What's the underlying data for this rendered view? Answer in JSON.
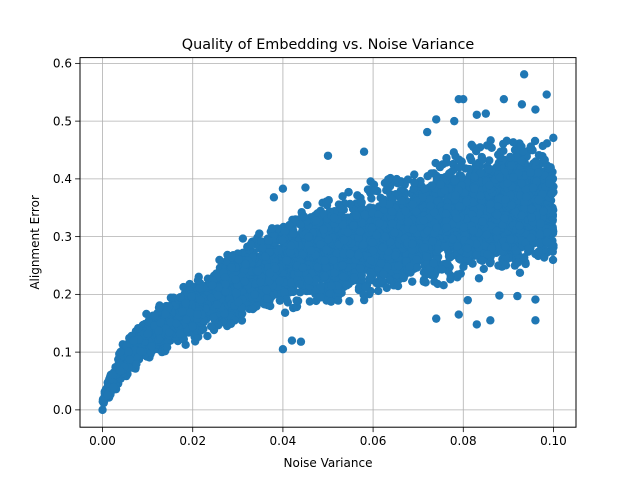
{
  "chart_data": {
    "type": "scatter",
    "title": "Quality of Embedding vs. Noise Variance",
    "xlabel": "Noise Variance",
    "ylabel": "Alignment Error",
    "xlim": [
      -0.005,
      0.105
    ],
    "ylim": [
      -0.03,
      0.61
    ],
    "grid": true,
    "marker_color": "#1f77b4",
    "xticks": [
      0.0,
      0.02,
      0.04,
      0.06,
      0.08,
      0.1
    ],
    "xtick_labels": [
      "0.00",
      "0.02",
      "0.04",
      "0.06",
      "0.08",
      "0.10"
    ],
    "yticks": [
      0.0,
      0.1,
      0.2,
      0.3,
      0.4,
      0.5,
      0.6
    ],
    "ytick_labels": [
      "0.0",
      "0.1",
      "0.2",
      "0.3",
      "0.4",
      "0.5",
      "0.6"
    ],
    "band": {
      "description_points": [
        [
          0.0,
          0.0,
          0.03
        ],
        [
          0.005,
          0.05,
          0.13
        ],
        [
          0.01,
          0.075,
          0.175
        ],
        [
          0.02,
          0.11,
          0.235
        ],
        [
          0.03,
          0.14,
          0.3
        ],
        [
          0.04,
          0.16,
          0.35
        ],
        [
          0.05,
          0.17,
          0.38
        ],
        [
          0.06,
          0.18,
          0.41
        ],
        [
          0.07,
          0.19,
          0.44
        ],
        [
          0.08,
          0.2,
          0.47
        ],
        [
          0.09,
          0.215,
          0.49
        ],
        [
          0.1,
          0.22,
          0.49
        ]
      ]
    },
    "outliers": [
      [
        0.0935,
        0.581
      ],
      [
        0.0985,
        0.546
      ],
      [
        0.079,
        0.538
      ],
      [
        0.08,
        0.538
      ],
      [
        0.089,
        0.538
      ],
      [
        0.093,
        0.529
      ],
      [
        0.096,
        0.52
      ],
      [
        0.085,
        0.513
      ],
      [
        0.083,
        0.511
      ],
      [
        0.078,
        0.5
      ],
      [
        0.074,
        0.503
      ],
      [
        0.072,
        0.481
      ],
      [
        0.05,
        0.44
      ],
      [
        0.058,
        0.447
      ],
      [
        0.04,
        0.383
      ],
      [
        0.045,
        0.385
      ],
      [
        0.038,
        0.368
      ],
      [
        0.096,
        0.155
      ],
      [
        0.083,
        0.148
      ],
      [
        0.086,
        0.155
      ],
      [
        0.074,
        0.158
      ],
      [
        0.079,
        0.165
      ],
      [
        0.042,
        0.12
      ],
      [
        0.044,
        0.118
      ],
      [
        0.04,
        0.105
      ],
      [
        0.0,
        0.0
      ],
      [
        0.092,
        0.197
      ],
      [
        0.088,
        0.198
      ],
      [
        0.096,
        0.191
      ],
      [
        0.081,
        0.19
      ]
    ]
  }
}
